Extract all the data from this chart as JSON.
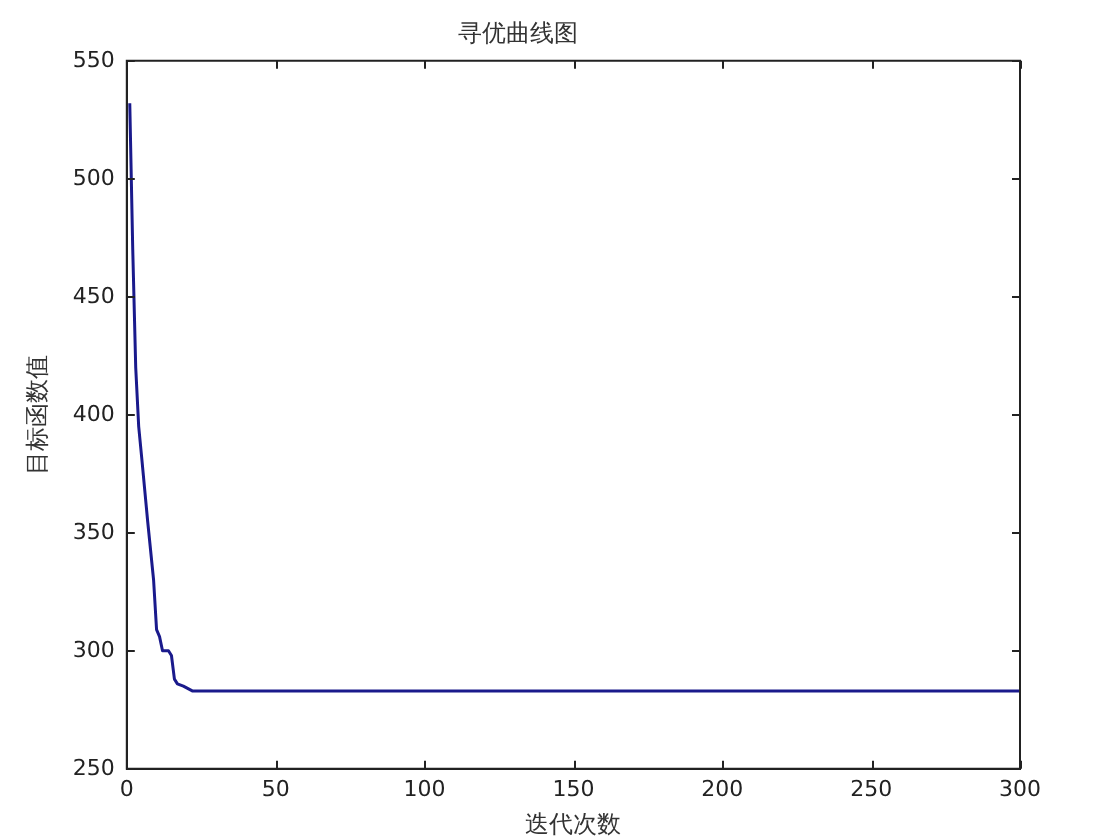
{
  "chart_data": {
    "type": "line",
    "title": "寻优曲线图",
    "xlabel": "迭代次数",
    "ylabel": "目标函数值",
    "x": [
      1,
      2,
      3,
      4,
      5,
      7,
      9,
      10,
      11,
      12,
      14,
      15,
      16,
      17,
      19,
      22,
      50,
      100,
      150,
      200,
      250,
      300
    ],
    "series": [
      {
        "color": "#1a1a8c",
        "values": [
          532,
          470,
          420,
          395,
          382,
          355,
          330,
          309,
          306,
          300,
          300,
          298,
          288,
          286,
          285,
          283,
          283,
          283,
          283,
          283,
          283,
          283
        ]
      }
    ],
    "xlim": [
      0,
      300
    ],
    "xticks": [
      0,
      50,
      100,
      150,
      200,
      250,
      300
    ],
    "ylim": [
      250,
      550
    ],
    "yticks": [
      250,
      300,
      350,
      400,
      450,
      500,
      550
    ],
    "grid": false,
    "legend": false,
    "marker": "none",
    "line_style": "solid"
  }
}
